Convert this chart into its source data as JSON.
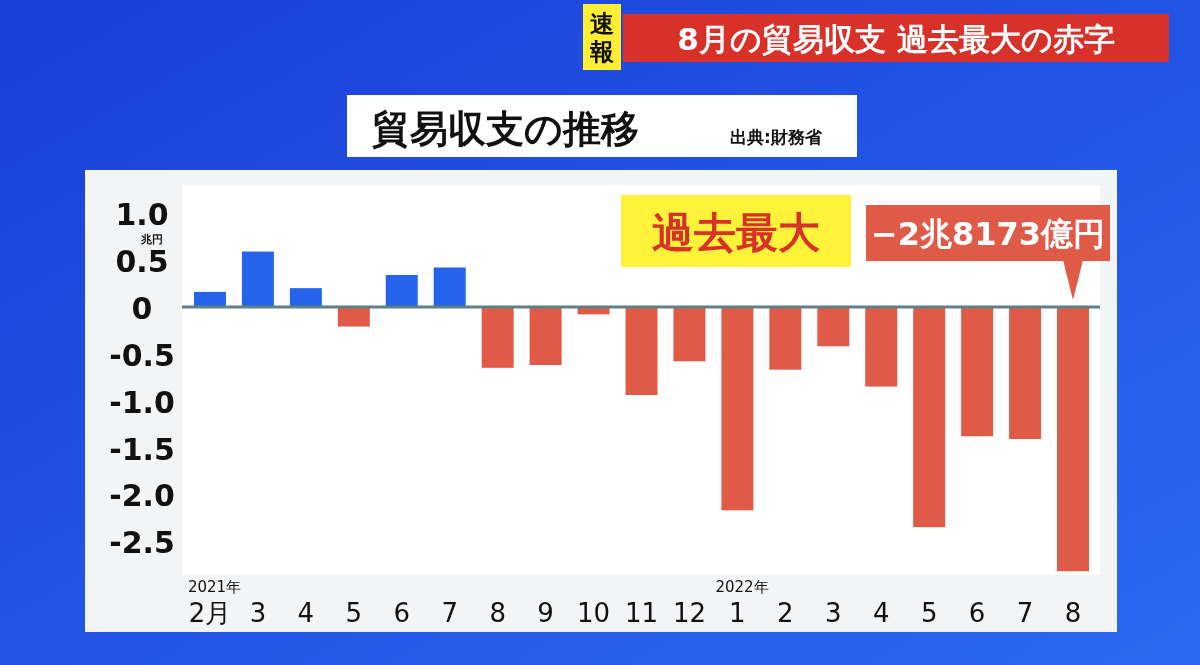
{
  "chart_data": {
    "type": "bar",
    "title": "貿易収支の推移",
    "ylabel": "兆円",
    "categories": [
      "2月",
      "3",
      "4",
      "5",
      "6",
      "7",
      "8",
      "9",
      "10",
      "11",
      "12",
      "1",
      "2",
      "3",
      "4",
      "5",
      "6",
      "7",
      "8"
    ],
    "values": [
      0.16,
      0.59,
      0.2,
      -0.21,
      0.34,
      0.42,
      -0.65,
      -0.62,
      -0.08,
      -0.94,
      -0.58,
      -2.17,
      -0.67,
      -0.42,
      -0.85,
      -2.35,
      -1.38,
      -1.41,
      -2.82
    ],
    "colors": [
      "#2563eb",
      "#2563eb",
      "#2563eb",
      "#e05a48",
      "#2563eb",
      "#2563eb",
      "#e05a48",
      "#e05a48",
      "#e05a48",
      "#e05a48",
      "#e05a48",
      "#e05a48",
      "#e05a48",
      "#e05a48",
      "#e05a48",
      "#e05a48",
      "#e05a48",
      "#e05a48",
      "#e05a48"
    ],
    "ref_lines": [
      {
        "axis": "y",
        "value": 0,
        "color": "#5f7f8a"
      }
    ],
    "ylim": [
      -2.86,
      1.3
    ],
    "yticks": [
      {
        "value": 1,
        "label": "1.0"
      },
      0.5,
      0,
      {
        "value": -0.5,
        "label": "-0.5"
      },
      {
        "value": -1,
        "label": "-1.0"
      },
      {
        "value": -1.5,
        "label": "-1.5"
      },
      {
        "value": -2,
        "label": "-2.0"
      },
      {
        "value": -2.5,
        "label": "-2.5"
      }
    ],
    "annotations": [
      "速報",
      "8月の貿易収支 過去最大の赤字",
      "出典:財務省",
      "過去最大",
      "2021年",
      "2022年",
      "−2兆8173億円"
    ]
  }
}
